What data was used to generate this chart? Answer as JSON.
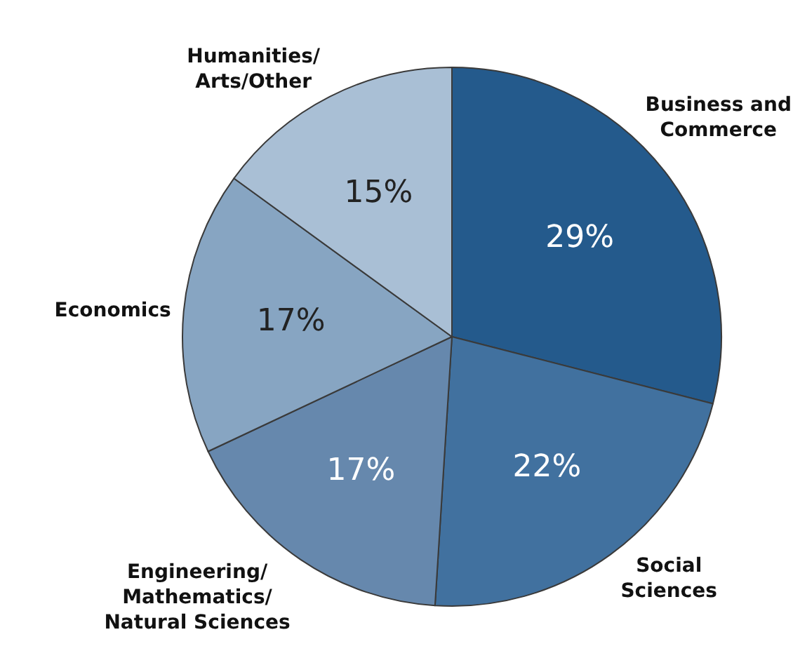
{
  "chart_data": {
    "type": "pie",
    "categories": [
      "Business and Commerce",
      "Social Sciences",
      "Engineering/Mathematics/Natural Sciences",
      "Economics",
      "Humanities/Arts/Other"
    ],
    "values": [
      29,
      22,
      17,
      17,
      15
    ],
    "value_labels": [
      "29%",
      "22%",
      "17%",
      "17%",
      "15%"
    ],
    "colors": [
      "#245a8c",
      "#41719f",
      "#6688ad",
      "#87a5c2",
      "#a9bfd5"
    ]
  }
}
